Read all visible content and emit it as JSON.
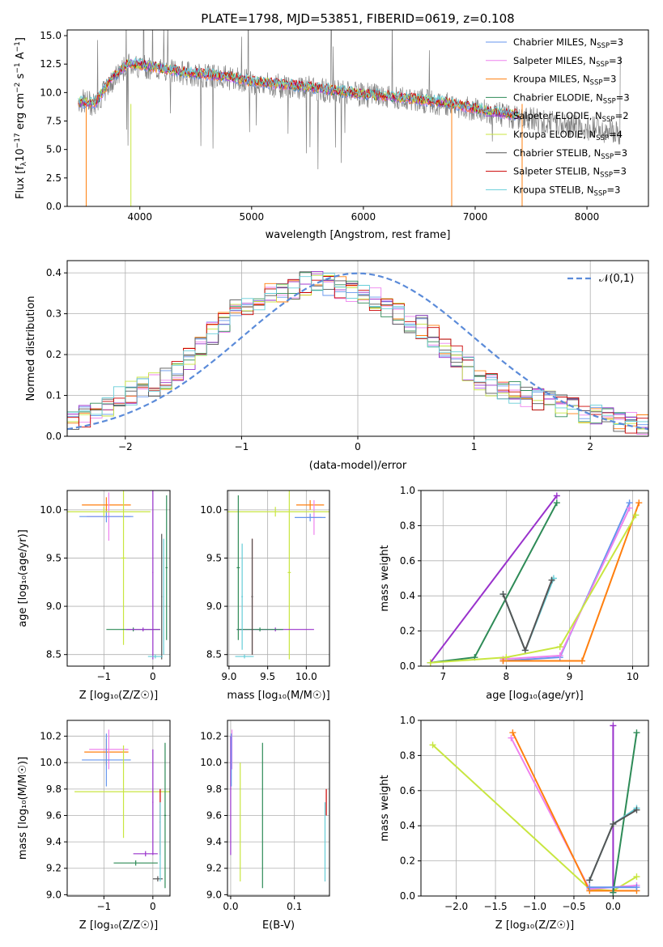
{
  "figure": {
    "title": "PLATE=1798, MJD=53851, FIBERID=0619, z=0.108"
  },
  "models": [
    {
      "name": "Chabrier MILES, N",
      "sub": "SSP",
      "tail": "=3",
      "color": "#6495ed"
    },
    {
      "name": "Salpeter MILES, N",
      "sub": "SSP",
      "tail": "=3",
      "color": "#ee82ee"
    },
    {
      "name": "Kroupa MILES, N",
      "sub": "SSP",
      "tail": "=3",
      "color": "#ff7f0e"
    },
    {
      "name": "Chabrier ELODIE, N",
      "sub": "SSP",
      "tail": "=3",
      "color": "#2e8b57"
    },
    {
      "name": "Salpeter ELODIE, N",
      "sub": "SSP",
      "tail": "=2",
      "color": "#9932cc"
    },
    {
      "name": "Kroupa ELODIE, N",
      "sub": "SSP",
      "tail": "=4",
      "color": "#c8e640"
    },
    {
      "name": "Chabrier STELIB, N",
      "sub": "SSP",
      "tail": "=3",
      "color": "#555555"
    },
    {
      "name": "Salpeter STELIB, N",
      "sub": "SSP",
      "tail": "=3",
      "color": "#cc0000"
    },
    {
      "name": "Kroupa STELIB, N",
      "sub": "SSP",
      "tail": "=3",
      "color": "#66cdd8"
    }
  ],
  "chart_data": [
    {
      "id": "spectrum",
      "type": "line",
      "title": "PLATE=1798, MJD=53851, FIBERID=0619, z=0.108",
      "xlabel": "wavelength [Angstrom, rest frame]",
      "ylabel": "Flux [f_λ 10^-17 erg cm^-2 s^-1 A^-1]",
      "xlim": [
        3350,
        8550
      ],
      "ylim": [
        0,
        15.5
      ],
      "xticks": [
        "4000",
        "5000",
        "6000",
        "7000",
        "8000"
      ],
      "yticks": [
        "0.0",
        "2.5",
        "5.0",
        "7.5",
        "10.0",
        "12.5",
        "15.0"
      ],
      "series": [
        {
          "name": "data (grey)",
          "x": [
            3450,
            3600,
            3750,
            3900,
            4050,
            4200,
            4400,
            4600,
            4800,
            5000,
            5200,
            5400,
            5600,
            5800,
            6000,
            6200,
            6400,
            6600,
            6800,
            7000,
            7200,
            7400,
            7600,
            7800,
            8000,
            8200,
            8300
          ],
          "y": [
            9.3,
            9.0,
            11.0,
            12.5,
            12.3,
            12.0,
            11.7,
            11.5,
            11.3,
            10.9,
            10.6,
            10.5,
            10.3,
            10.0,
            9.8,
            9.6,
            9.4,
            9.2,
            8.9,
            8.5,
            8.1,
            7.8,
            7.5,
            7.2,
            6.9,
            6.6,
            6.4
          ]
        },
        {
          "name": "model",
          "x": [
            3450,
            3600,
            3750,
            3900,
            4050,
            4200,
            4400,
            4600,
            4800,
            5000,
            5200,
            5400,
            5600,
            5800,
            6000,
            6200,
            6400,
            6600,
            6800,
            7000,
            7200,
            7400
          ],
          "y": [
            9.2,
            9.1,
            11.3,
            12.6,
            12.4,
            12.1,
            11.8,
            11.6,
            11.4,
            11.0,
            10.8,
            10.6,
            10.4,
            10.1,
            9.9,
            9.7,
            9.5,
            9.3,
            9.0,
            8.6,
            8.3,
            8.0
          ]
        }
      ]
    },
    {
      "id": "residuals",
      "type": "line",
      "xlabel": "(data-model)/error",
      "ylabel": "Normed distribution",
      "xlim": [
        -2.5,
        2.5
      ],
      "ylim": [
        0,
        0.43
      ],
      "xticks": [
        "−2",
        "−1",
        "0",
        "1",
        "2"
      ],
      "yticks": [
        "0.0",
        "0.1",
        "0.2",
        "0.3",
        "0.4"
      ],
      "legend": "𝒩(0,1)",
      "series": [
        {
          "name": "gaussian",
          "x": [
            -2.5,
            -2.0,
            -1.5,
            -1.0,
            -0.5,
            0.0,
            0.5,
            1.0,
            1.5,
            2.0,
            2.5
          ],
          "y": [
            0.018,
            0.054,
            0.13,
            0.242,
            0.352,
            0.399,
            0.352,
            0.242,
            0.13,
            0.054,
            0.018
          ]
        },
        {
          "name": "histogram",
          "x": [
            -2.4,
            -2.2,
            -2.0,
            -1.8,
            -1.6,
            -1.4,
            -1.2,
            -1.0,
            -0.8,
            -0.6,
            -0.4,
            -0.2,
            0.0,
            0.2,
            0.4,
            0.6,
            0.8,
            1.0,
            1.2,
            1.4,
            1.6,
            1.8,
            2.0,
            2.2,
            2.4
          ],
          "y": [
            0.04,
            0.07,
            0.1,
            0.12,
            0.15,
            0.2,
            0.27,
            0.32,
            0.34,
            0.36,
            0.38,
            0.37,
            0.35,
            0.33,
            0.29,
            0.26,
            0.21,
            0.15,
            0.12,
            0.1,
            0.09,
            0.07,
            0.05,
            0.04,
            0.03
          ]
        }
      ]
    },
    {
      "id": "age_vs_Z",
      "type": "scatter",
      "xlabel": "Z [log₁₀(Z/Z☉)]",
      "ylabel": "age [log₁₀(age/yr)]",
      "xlim": [
        -1.75,
        0.35
      ],
      "ylim": [
        8.38,
        10.2
      ],
      "xticks": [
        "−1",
        "0"
      ],
      "yticks": [
        "8.5",
        "9.0",
        "9.5",
        "10.0"
      ],
      "points": [
        {
          "model": 2,
          "x": -0.95,
          "y": 10.05,
          "xerr": 0.5,
          "yerr": 0.08
        },
        {
          "model": 1,
          "x": -0.9,
          "y": 9.93,
          "xerr": 0.45,
          "yerr": 0.25
        },
        {
          "model": 0,
          "x": -0.95,
          "y": 9.93,
          "xerr": 0.55,
          "yerr": 0.06
        },
        {
          "model": 5,
          "x": -1.0,
          "y": 9.98,
          "xerr": 0.95,
          "yerr": 0.05
        },
        {
          "model": 5,
          "x": -0.6,
          "y": 9.5,
          "xerr": 0.05,
          "yerr": 0.9
        },
        {
          "model": 3,
          "x": 0.28,
          "y": 9.4,
          "xerr": 0.02,
          "yerr": 0.75
        },
        {
          "model": 3,
          "x": -0.4,
          "y": 8.76,
          "xerr": 0.55,
          "yerr": 0.02
        },
        {
          "model": 4,
          "x": -0.2,
          "y": 8.76,
          "xerr": 0.35,
          "yerr": 0.02
        },
        {
          "model": 4,
          "x": 0.0,
          "y": 9.35,
          "xerr": 0.01,
          "yerr": 0.9
        },
        {
          "model": 6,
          "x": 0.18,
          "y": 9.1,
          "xerr": 0.01,
          "yerr": 0.65
        },
        {
          "model": 8,
          "x": 0.05,
          "y": 8.48,
          "xerr": 0.15,
          "yerr": 0.02
        },
        {
          "model": 8,
          "x": 0.22,
          "y": 9.1,
          "xerr": 0.01,
          "yerr": 0.6
        }
      ]
    },
    {
      "id": "age_vs_mass",
      "type": "scatter",
      "xlabel": "mass [log₁₀(M/M☉)]",
      "ylabel": "",
      "xlim": [
        8.98,
        10.3
      ],
      "ylim": [
        8.38,
        10.2
      ],
      "xticks": [
        "9.0",
        "9.5",
        "10.0"
      ],
      "yticks": [
        "8.5",
        "9.0",
        "9.5",
        "10.0"
      ],
      "points": [
        {
          "model": 2,
          "x": 10.05,
          "y": 10.05,
          "xerr": 0.18,
          "yerr": 0.05
        },
        {
          "model": 1,
          "x": 10.1,
          "y": 9.92,
          "xerr": 0.1,
          "yerr": 0.18
        },
        {
          "model": 0,
          "x": 10.05,
          "y": 9.92,
          "xerr": 0.2,
          "yerr": 0.04
        },
        {
          "model": 5,
          "x": 9.6,
          "y": 9.98,
          "xerr": 0.9,
          "yerr": 0.05
        },
        {
          "model": 5,
          "x": 9.78,
          "y": 9.35,
          "xerr": 0.02,
          "yerr": 0.9
        },
        {
          "model": 3,
          "x": 9.12,
          "y": 9.4,
          "xerr": 0.02,
          "yerr": 0.75
        },
        {
          "model": 4,
          "x": 9.6,
          "y": 8.76,
          "xerr": 0.5,
          "yerr": 0.02
        },
        {
          "model": 3,
          "x": 9.4,
          "y": 8.76,
          "xerr": 0.3,
          "yerr": 0.02
        },
        {
          "model": 7,
          "x": 9.3,
          "y": 9.1,
          "xerr": 0.01,
          "yerr": 0.6
        },
        {
          "model": 8,
          "x": 9.2,
          "y": 8.48,
          "xerr": 0.12,
          "yerr": 0.02
        },
        {
          "model": 8,
          "x": 9.17,
          "y": 9.1,
          "xerr": 0.01,
          "yerr": 0.55
        },
        {
          "model": 6,
          "x": 9.3,
          "y": 9.1,
          "xerr": 0.01,
          "yerr": 0.6
        }
      ]
    },
    {
      "id": "weight_vs_age",
      "type": "line",
      "xlabel": "age [log₁₀(age/yr)]",
      "ylabel": "mass weight",
      "xlim": [
        6.65,
        10.25
      ],
      "ylim": [
        0,
        1.0
      ],
      "xticks": [
        "7",
        "8",
        "9",
        "10"
      ],
      "yticks": [
        "0.0",
        "0.2",
        "0.4",
        "0.6",
        "0.8",
        "1.0"
      ],
      "series": [
        {
          "model": 4,
          "x": [
            6.8,
            8.8
          ],
          "y": [
            0.02,
            0.97
          ]
        },
        {
          "model": 3,
          "x": [
            6.8,
            7.5,
            8.8
          ],
          "y": [
            0.02,
            0.05,
            0.93
          ]
        },
        {
          "model": 8,
          "x": [
            7.95,
            8.3,
            8.75
          ],
          "y": [
            0.41,
            0.09,
            0.5
          ]
        },
        {
          "model": 6,
          "x": [
            7.95,
            8.3,
            8.72
          ],
          "y": [
            0.41,
            0.09,
            0.49
          ]
        },
        {
          "model": 0,
          "x": [
            7.95,
            8.85,
            9.95
          ],
          "y": [
            0.03,
            0.05,
            0.93
          ]
        },
        {
          "model": 1,
          "x": [
            7.95,
            8.85,
            9.95
          ],
          "y": [
            0.04,
            0.06,
            0.9
          ]
        },
        {
          "model": 2,
          "x": [
            7.95,
            9.2,
            10.1
          ],
          "y": [
            0.03,
            0.03,
            0.93
          ]
        },
        {
          "model": 5,
          "x": [
            6.8,
            8.0,
            8.85,
            10.05
          ],
          "y": [
            0.02,
            0.05,
            0.11,
            0.86
          ]
        }
      ]
    },
    {
      "id": "mass_vs_Z",
      "type": "scatter",
      "xlabel": "Z [log₁₀(Z/Z☉)]",
      "ylabel": "mass [log₁₀(M/M☉)]",
      "xlim": [
        -1.75,
        0.35
      ],
      "ylim": [
        8.99,
        10.32
      ],
      "xticks": [
        "−1",
        "0"
      ],
      "yticks": [
        "9.0",
        "9.2",
        "9.4",
        "9.6",
        "9.8",
        "10.0",
        "10.2"
      ],
      "points": [
        {
          "model": 2,
          "x": -0.95,
          "y": 10.08,
          "xerr": 0.45,
          "yerr": 0.1
        },
        {
          "model": 1,
          "x": -0.9,
          "y": 10.1,
          "xerr": 0.4,
          "yerr": 0.15
        },
        {
          "model": 0,
          "x": -0.95,
          "y": 10.02,
          "xerr": 0.5,
          "yerr": 0.2
        },
        {
          "model": 5,
          "x": -0.6,
          "y": 9.78,
          "xerr": 1.0,
          "yerr": 0.35
        },
        {
          "model": 3,
          "x": 0.25,
          "y": 9.6,
          "xerr": 0.02,
          "yerr": 0.55
        },
        {
          "model": 3,
          "x": -0.35,
          "y": 9.24,
          "xerr": 0.45,
          "yerr": 0.02
        },
        {
          "model": 4,
          "x": 0.0,
          "y": 9.7,
          "xerr": 0.01,
          "yerr": 0.4
        },
        {
          "model": 4,
          "x": -0.15,
          "y": 9.31,
          "xerr": 0.25,
          "yerr": 0.02
        },
        {
          "model": 7,
          "x": 0.15,
          "y": 9.55,
          "xerr": 0.01,
          "yerr": 0.25
        },
        {
          "model": 6,
          "x": 0.1,
          "y": 9.12,
          "xerr": 0.1,
          "yerr": 0.02
        },
        {
          "model": 8,
          "x": 0.15,
          "y": 9.4,
          "xerr": 0.01,
          "yerr": 0.3
        }
      ]
    },
    {
      "id": "mass_vs_ebv",
      "type": "scatter",
      "xlabel": "E(B-V)",
      "ylabel": "",
      "xlim": [
        -0.005,
        0.155
      ],
      "ylim": [
        8.99,
        10.32
      ],
      "xticks": [
        "0.0",
        "0.1"
      ],
      "yticks": [
        "9.0",
        "9.2",
        "9.4",
        "9.6",
        "9.8",
        "10.0",
        "10.2"
      ],
      "points": [
        {
          "model": 4,
          "x": 0.0,
          "y": 9.75,
          "xerr": 0.0,
          "yerr": 0.45
        },
        {
          "model": 1,
          "x": 0.002,
          "y": 10.1,
          "xerr": 0.0,
          "yerr": 0.15
        },
        {
          "model": 0,
          "x": 0.001,
          "y": 10.02,
          "xerr": 0.0,
          "yerr": 0.2
        },
        {
          "model": 5,
          "x": 0.015,
          "y": 9.55,
          "xerr": 0.0,
          "yerr": 0.45
        },
        {
          "model": 3,
          "x": 0.05,
          "y": 9.6,
          "xerr": 0.0,
          "yerr": 0.55
        },
        {
          "model": 7,
          "x": 0.15,
          "y": 9.7,
          "xerr": 0.0,
          "yerr": 0.1
        },
        {
          "model": 8,
          "x": 0.148,
          "y": 9.4,
          "xerr": 0.0,
          "yerr": 0.3
        }
      ]
    },
    {
      "id": "weight_vs_Z",
      "type": "line",
      "xlabel": "Z [log₁₀(Z/Z☉)]",
      "ylabel": "mass weight",
      "xlim": [
        -2.45,
        0.45
      ],
      "ylim": [
        0,
        1.0
      ],
      "xticks": [
        "−2.0",
        "−1.5",
        "−1.0",
        "−0.5",
        "0.0"
      ],
      "yticks": [
        "0.0",
        "0.2",
        "0.4",
        "0.6",
        "0.8",
        "1.0"
      ],
      "series": [
        {
          "model": 5,
          "x": [
            -2.3,
            -0.3,
            0.0,
            0.3
          ],
          "y": [
            0.86,
            0.04,
            0.03,
            0.11
          ]
        },
        {
          "model": 1,
          "x": [
            -1.3,
            -0.3,
            0.3
          ],
          "y": [
            0.9,
            0.04,
            0.06
          ]
        },
        {
          "model": 2,
          "x": [
            -1.28,
            -0.3,
            0.3
          ],
          "y": [
            0.93,
            0.03,
            0.03
          ]
        },
        {
          "model": 4,
          "x": [
            0.0,
            0.0
          ],
          "y": [
            0.02,
            0.97
          ]
        },
        {
          "model": 3,
          "x": [
            0.0,
            0.3
          ],
          "y": [
            0.02,
            0.93
          ]
        },
        {
          "model": 8,
          "x": [
            -0.3,
            0.0,
            0.3
          ],
          "y": [
            0.09,
            0.41,
            0.5
          ]
        },
        {
          "model": 6,
          "x": [
            -0.3,
            0.0,
            0.3
          ],
          "y": [
            0.09,
            0.41,
            0.49
          ]
        },
        {
          "model": 0,
          "x": [
            -0.3,
            0.3
          ],
          "y": [
            0.05,
            0.05
          ]
        }
      ]
    }
  ]
}
